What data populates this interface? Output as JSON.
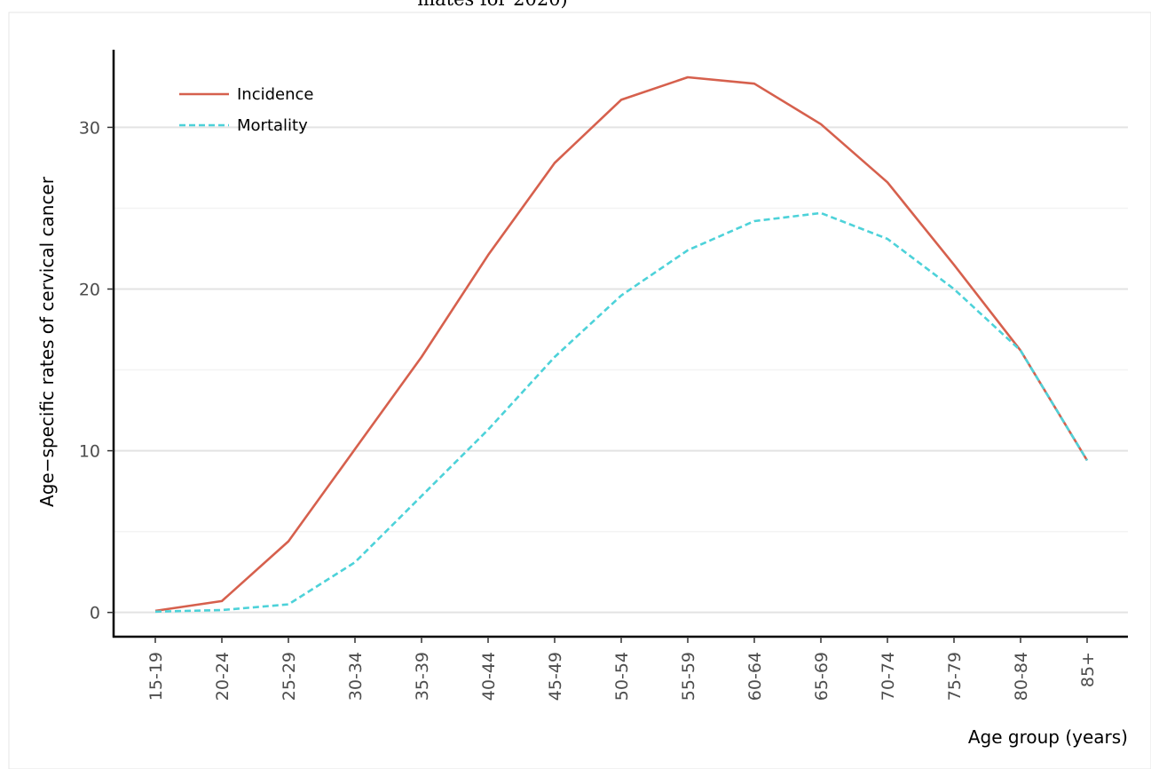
{
  "chart_data": {
    "type": "line",
    "title": "mates for 2020)",
    "xlabel": "Age group (years)",
    "ylabel": "Age−specific rates of cervical cancer",
    "categories": [
      "15-19",
      "20-24",
      "25-29",
      "30-34",
      "35-39",
      "40-44",
      "45-49",
      "50-54",
      "55-59",
      "60-64",
      "65-69",
      "70-74",
      "75-79",
      "80-84",
      "85+"
    ],
    "y_ticks": [
      0,
      10,
      20,
      30
    ],
    "y_tick_labels": [
      "0",
      "10",
      "20",
      "30"
    ],
    "ylim": [
      -1.5,
      34.8
    ],
    "grid": true,
    "legend_position": "top-left",
    "series": [
      {
        "name": "Incidence",
        "color": "#d6604d",
        "line_style": "solid",
        "values": [
          0.1,
          0.7,
          4.4,
          10.1,
          15.8,
          22.1,
          27.8,
          31.7,
          33.1,
          32.7,
          30.2,
          26.6,
          21.5,
          16.2,
          9.4
        ]
      },
      {
        "name": "Mortality",
        "color": "#4dd2d9",
        "line_style": "dashed",
        "values": [
          0.05,
          0.15,
          0.5,
          3.1,
          7.2,
          11.3,
          15.8,
          19.6,
          22.4,
          24.2,
          24.7,
          23.1,
          20.0,
          16.2,
          9.4
        ]
      }
    ]
  }
}
